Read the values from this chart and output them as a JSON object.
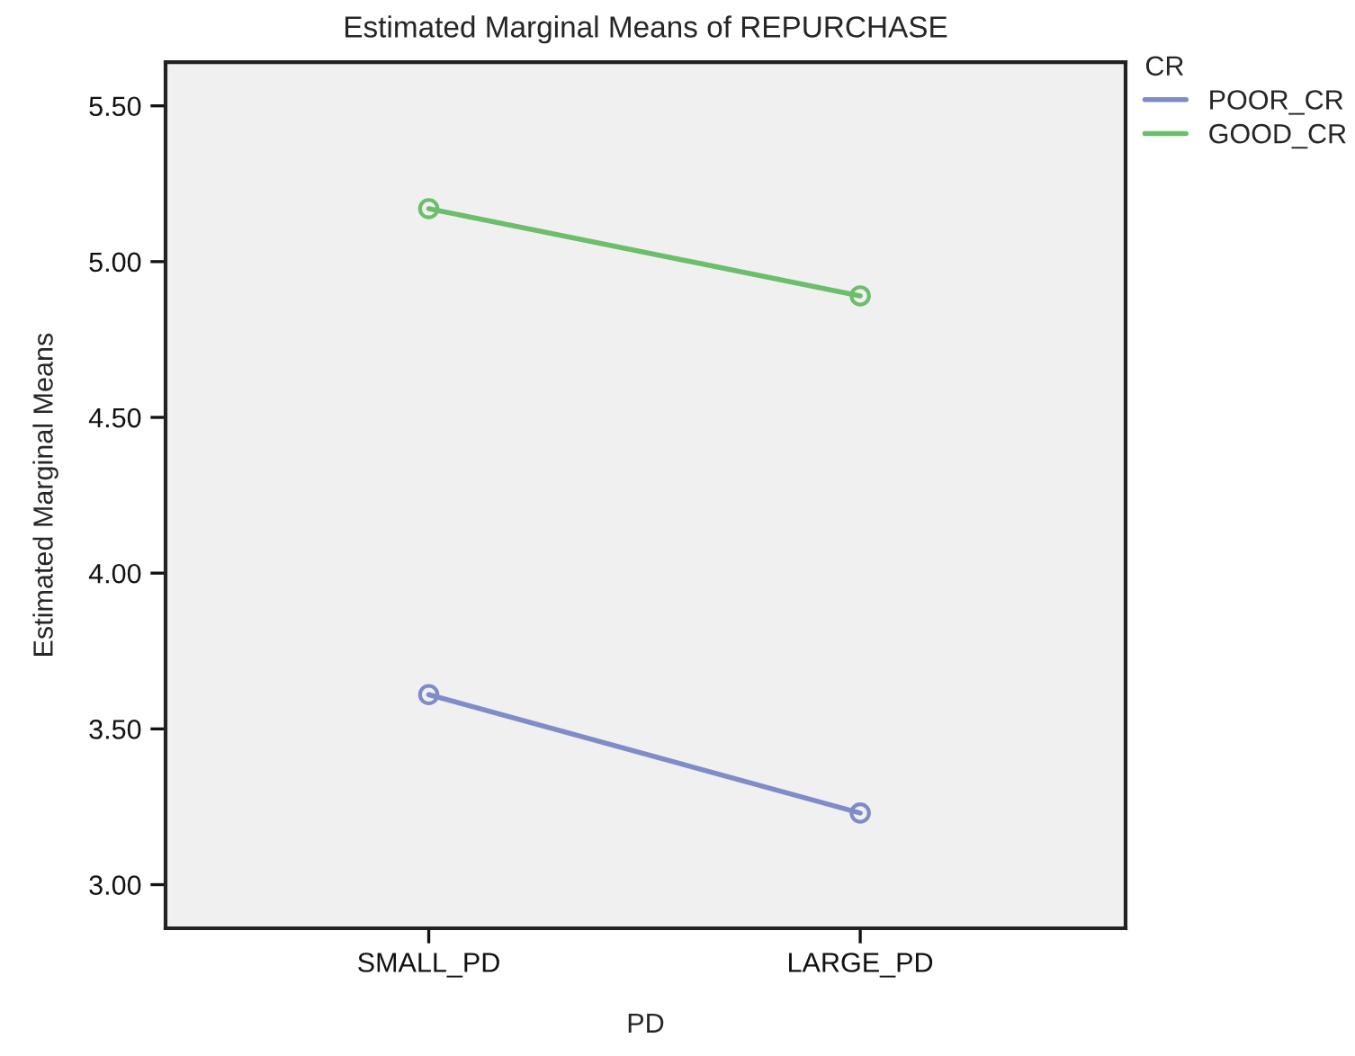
{
  "chart_data": {
    "type": "line",
    "title": "Estimated Marginal Means of REPURCHASE",
    "xlabel": "PD",
    "ylabel": "Estimated Marginal Means",
    "legend_title": "CR",
    "categories": [
      "SMALL_PD",
      "LARGE_PD"
    ],
    "series": [
      {
        "name": "POOR_CR",
        "color": "#7f8cc8",
        "values": [
          3.61,
          3.23
        ]
      },
      {
        "name": "GOOD_CR",
        "color": "#6cbd6c",
        "values": [
          5.17,
          4.89
        ]
      }
    ],
    "ylim": [
      2.86,
      5.64
    ],
    "yticks": [
      {
        "value": 3.0,
        "label": "3.00"
      },
      {
        "value": 3.5,
        "label": "3.50"
      },
      {
        "value": 4.0,
        "label": "4.00"
      },
      {
        "value": 4.5,
        "label": "4.50"
      },
      {
        "value": 5.0,
        "label": "5.00"
      },
      {
        "value": 5.5,
        "label": "5.50"
      }
    ],
    "marker": "circle",
    "line_style": "solid",
    "legend": "top right",
    "grid": false
  }
}
